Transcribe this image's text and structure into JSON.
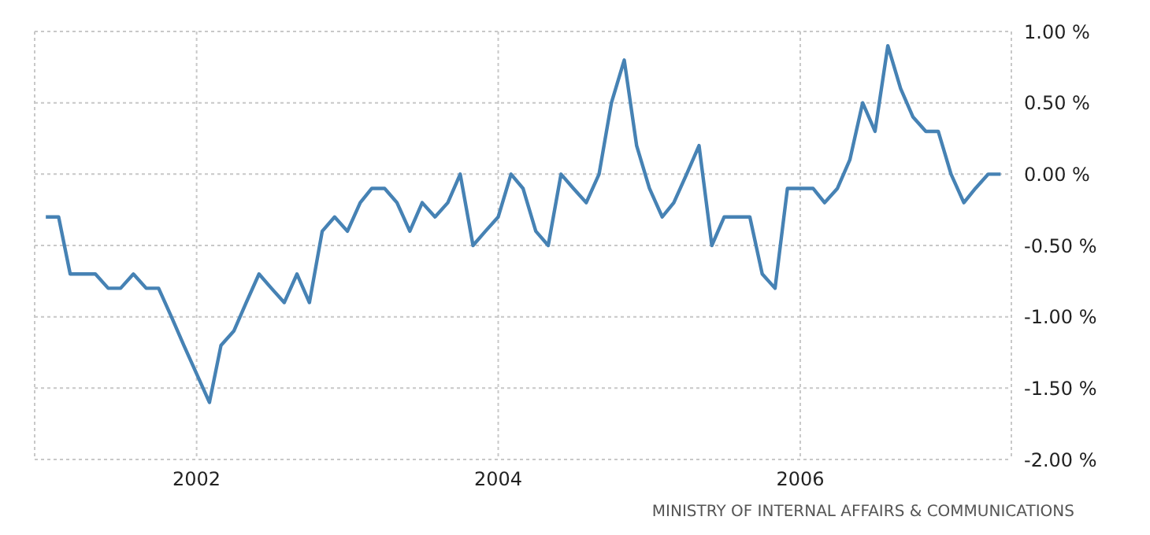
{
  "chart_data": {
    "type": "line",
    "x": [
      "2001-01",
      "2001-02",
      "2001-03",
      "2001-04",
      "2001-05",
      "2001-06",
      "2001-07",
      "2001-08",
      "2001-09",
      "2001-10",
      "2001-11",
      "2001-12",
      "2002-01",
      "2002-02",
      "2002-03",
      "2002-04",
      "2002-05",
      "2002-06",
      "2002-07",
      "2002-08",
      "2002-09",
      "2002-10",
      "2002-11",
      "2002-12",
      "2003-01",
      "2003-02",
      "2003-03",
      "2003-04",
      "2003-05",
      "2003-06",
      "2003-07",
      "2003-08",
      "2003-09",
      "2003-10",
      "2003-11",
      "2003-12",
      "2004-01",
      "2004-02",
      "2004-03",
      "2004-04",
      "2004-05",
      "2004-06",
      "2004-07",
      "2004-08",
      "2004-09",
      "2004-10",
      "2004-11",
      "2004-12",
      "2005-01",
      "2005-02",
      "2005-03",
      "2005-04",
      "2005-05",
      "2005-06",
      "2005-07",
      "2005-08",
      "2005-09",
      "2005-10",
      "2005-11",
      "2005-12",
      "2006-01",
      "2006-02",
      "2006-03",
      "2006-04",
      "2006-05",
      "2006-06",
      "2006-07",
      "2006-08",
      "2006-09",
      "2006-10",
      "2006-11",
      "2006-12",
      "2007-01",
      "2007-02",
      "2007-03",
      "2007-04",
      "2007-05"
    ],
    "series": [
      {
        "color": "#4682b4",
        "values": [
          -0.3,
          -0.3,
          -0.7,
          -0.7,
          -0.7,
          -0.8,
          -0.8,
          -0.7,
          -0.8,
          -0.8,
          -1.0,
          -1.2,
          -1.4,
          -1.6,
          -1.2,
          -1.1,
          -0.9,
          -0.7,
          -0.8,
          -0.9,
          -0.7,
          -0.9,
          -0.4,
          -0.3,
          -0.4,
          -0.2,
          -0.1,
          -0.1,
          -0.2,
          -0.4,
          -0.2,
          -0.3,
          -0.2,
          0.0,
          -0.5,
          -0.4,
          -0.3,
          0.0,
          -0.1,
          -0.4,
          -0.5,
          0.0,
          -0.1,
          -0.2,
          0.0,
          0.5,
          0.8,
          0.2,
          -0.1,
          -0.3,
          -0.2,
          0.0,
          0.2,
          -0.5,
          -0.3,
          -0.3,
          -0.3,
          -0.7,
          -0.8,
          -0.1,
          -0.1,
          -0.1,
          -0.2,
          -0.1,
          0.1,
          0.5,
          0.3,
          0.9,
          0.6,
          0.4,
          0.3,
          0.3,
          0.0,
          -0.2,
          -0.1,
          0.0,
          0.0
        ]
      }
    ],
    "xlim": [
      "2000-12-05",
      "2007-05-27"
    ],
    "xticks": [
      {
        "value": "2002",
        "label": "2002"
      },
      {
        "value": "2004",
        "label": "2004"
      },
      {
        "value": "2006",
        "label": "2006"
      }
    ],
    "ylim": [
      -2,
      1
    ],
    "yticks": [
      {
        "value": 1,
        "label": "1.00 %"
      },
      {
        "value": 0.5,
        "label": "0.50 %"
      },
      {
        "value": 0,
        "label": "0.00 %"
      },
      {
        "value": -0.5,
        "label": "-0.50 %"
      },
      {
        "value": -1,
        "label": "-1.00 %"
      },
      {
        "value": -1.5,
        "label": "-1.50 %"
      },
      {
        "value": -2,
        "label": "-2.00 %"
      }
    ],
    "grid": true,
    "annotations": [
      "MINISTRY OF INTERNAL AFFAIRS & COMMUNICATIONS"
    ]
  }
}
